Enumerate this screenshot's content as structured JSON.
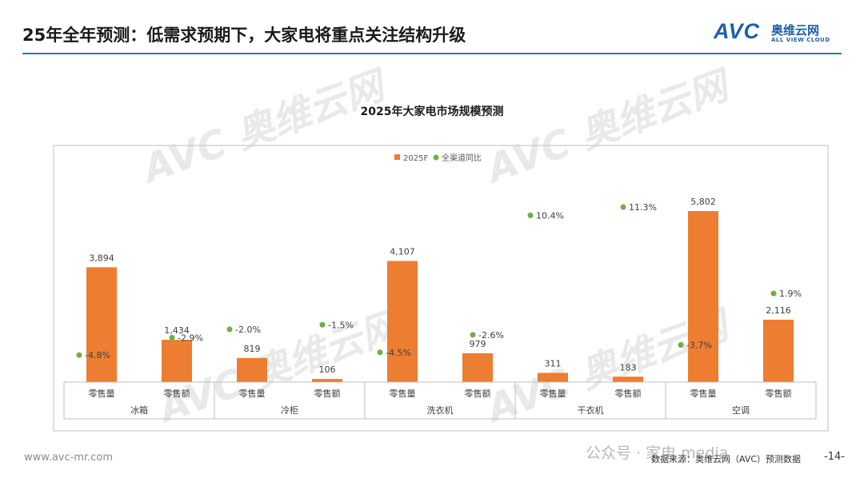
{
  "header": {
    "title": "25年全年预测：低需求预期下，大家电将重点关注结构升级",
    "logo_mark": "AVC",
    "logo_cn": "奥维云网",
    "logo_en": "ALL VIEW CLOUD"
  },
  "watermark": {
    "mark": "AVC",
    "cn": "奥维云网",
    "en": "ALL VIEW CLOUD"
  },
  "chart_data": {
    "type": "bar",
    "title": "2025年大家电市场规模预测",
    "legend": {
      "bar_label": "2025F",
      "dot_label": "全渠道同比",
      "position": "top"
    },
    "groups": [
      {
        "name": "冰箱",
        "categories": [
          "零售量",
          "零售额"
        ]
      },
      {
        "name": "冷柜",
        "categories": [
          "零售量",
          "零售额"
        ]
      },
      {
        "name": "洗衣机",
        "categories": [
          "零售量",
          "零售额"
        ]
      },
      {
        "name": "干衣机",
        "categories": [
          "零售量",
          "零售额"
        ]
      },
      {
        "name": "空调",
        "categories": [
          "零售量",
          "零售额"
        ]
      }
    ],
    "series": [
      {
        "name": "2025F",
        "type": "bar",
        "values": [
          3894,
          1434,
          819,
          106,
          4107,
          979,
          311,
          183,
          5802,
          2116
        ],
        "labels": [
          "3,894",
          "1,434",
          "819",
          "106",
          "4,107",
          "979",
          "311",
          "183",
          "5,802",
          "2,116"
        ]
      },
      {
        "name": "全渠道同比",
        "type": "scatter",
        "values": [
          -4.8,
          -2.9,
          -2.0,
          -1.5,
          -4.5,
          -2.6,
          10.4,
          11.3,
          -3.7,
          1.9
        ],
        "labels": [
          "-4.8%",
          "-2.9%",
          "-2.0%",
          "-1.5%",
          "-4.5%",
          "-2.6%",
          "10.4%",
          "11.3%",
          "-3.7%",
          "1.9%"
        ]
      }
    ],
    "bar_ylim": [
      0,
      5802
    ],
    "dot_ylim": [
      -6,
      14
    ],
    "colors": {
      "bar": "#ed7d31",
      "dot": "#70ad47"
    }
  },
  "footer": {
    "url": "www.avc-mr.com",
    "source": "数据来源：奥维云网（AVC）预测数据",
    "page": "-14-",
    "wechat": "公众号 · 家电 media"
  }
}
